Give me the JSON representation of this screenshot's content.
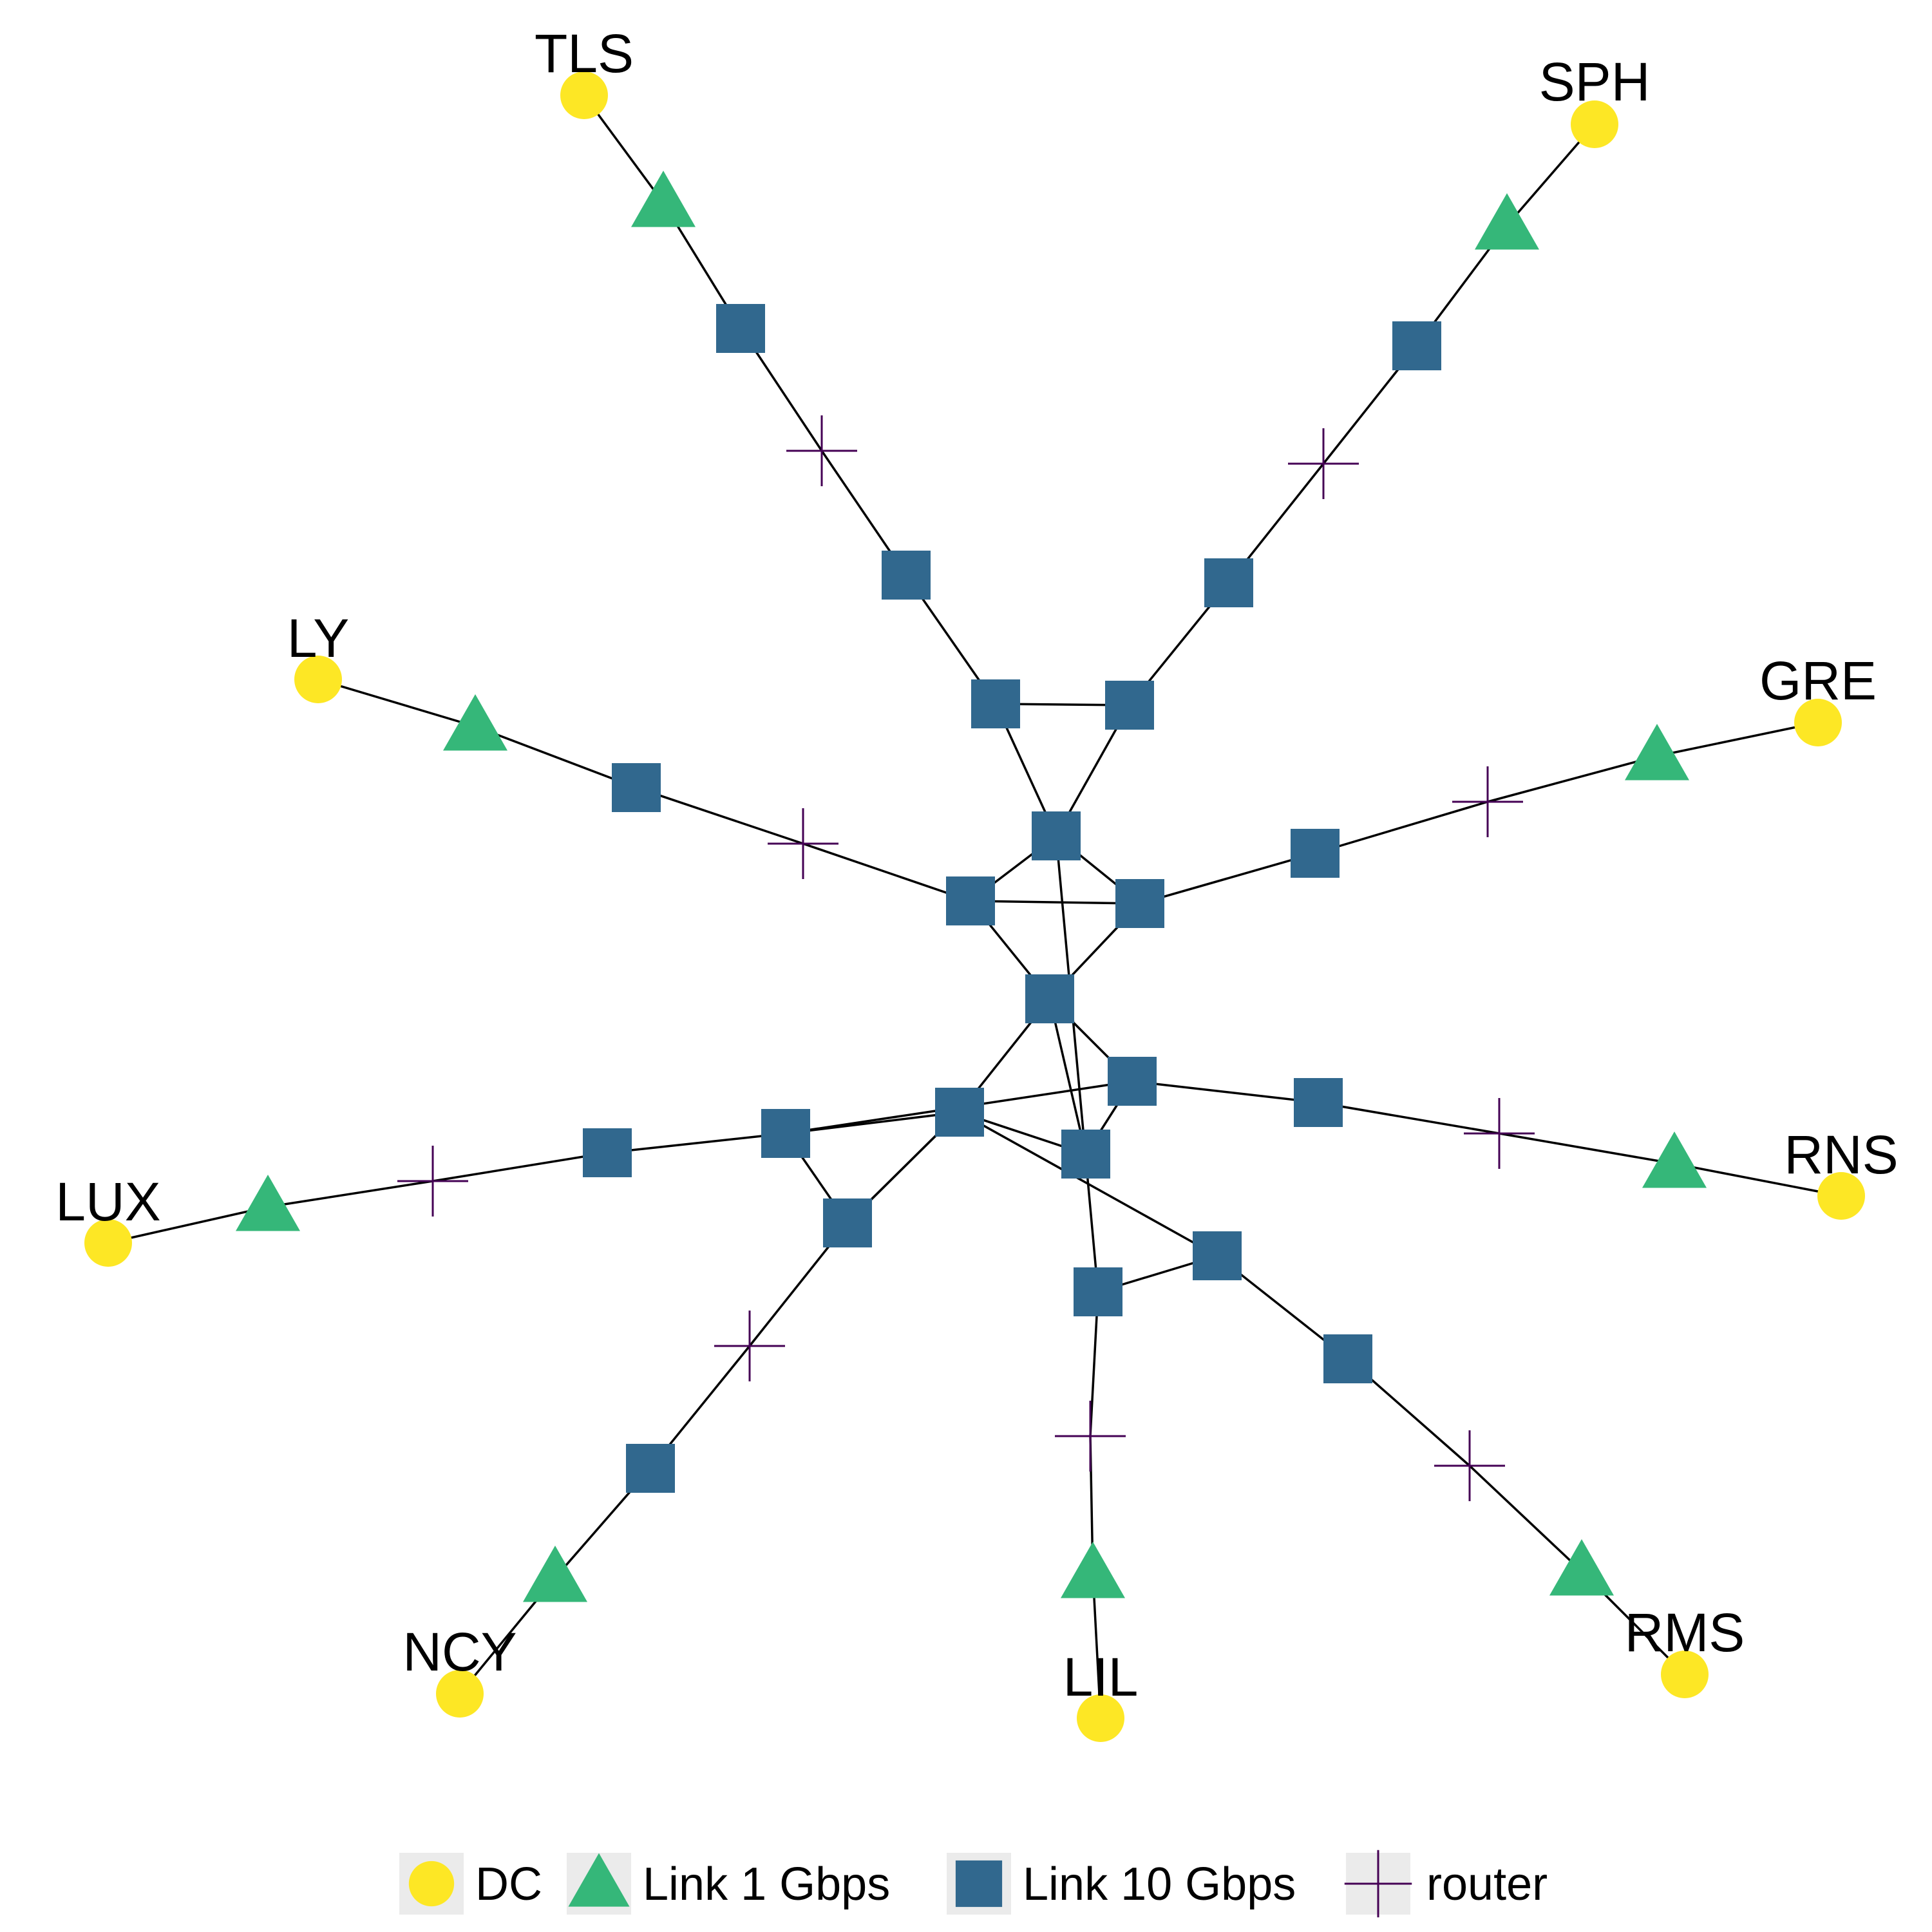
{
  "colors": {
    "dc": "#fde725",
    "link_1g": "#35b779",
    "link_10g": "#31688e",
    "router": "#440154",
    "edge": "#000000"
  },
  "node_types": [
    "DC",
    "Link 1 Gbps",
    "Link 10 Gbps",
    "router"
  ],
  "legend": [
    {
      "type": "dc",
      "label": "DC"
    },
    {
      "type": "link_1g",
      "label": "Link 1 Gbps"
    },
    {
      "type": "link_10g",
      "label": "Link 10 Gbps"
    },
    {
      "type": "router",
      "label": "router"
    }
  ],
  "datacenters": [
    "TLS",
    "SPH",
    "LY",
    "GRE",
    "LUX",
    "RNS",
    "NCY",
    "LIL",
    "RMS"
  ],
  "spokes": [
    {
      "dc": "TLS",
      "chain": [
        "dc",
        "link_1g",
        "link_10g",
        "router",
        "link_10g"
      ]
    },
    {
      "dc": "SPH",
      "chain": [
        "dc",
        "link_1g",
        "link_10g",
        "router",
        "link_10g"
      ]
    },
    {
      "dc": "LY",
      "chain": [
        "dc",
        "link_1g",
        "link_10g",
        "router",
        "link_10g"
      ]
    },
    {
      "dc": "GRE",
      "chain": [
        "dc",
        "link_1g",
        "router",
        "link_10g",
        "link_10g"
      ]
    },
    {
      "dc": "LUX",
      "chain": [
        "dc",
        "link_1g",
        "router",
        "link_10g",
        "link_10g"
      ]
    },
    {
      "dc": "RNS",
      "chain": [
        "dc",
        "link_1g",
        "router",
        "link_10g",
        "link_10g"
      ]
    },
    {
      "dc": "NCY",
      "chain": [
        "dc",
        "link_1g",
        "link_10g",
        "router",
        "link_10g"
      ]
    },
    {
      "dc": "LIL",
      "chain": [
        "dc",
        "link_1g",
        "router",
        "link_10g"
      ]
    },
    {
      "dc": "RMS",
      "chain": [
        "dc",
        "link_1g",
        "router",
        "link_10g",
        "link_10g"
      ]
    }
  ]
}
